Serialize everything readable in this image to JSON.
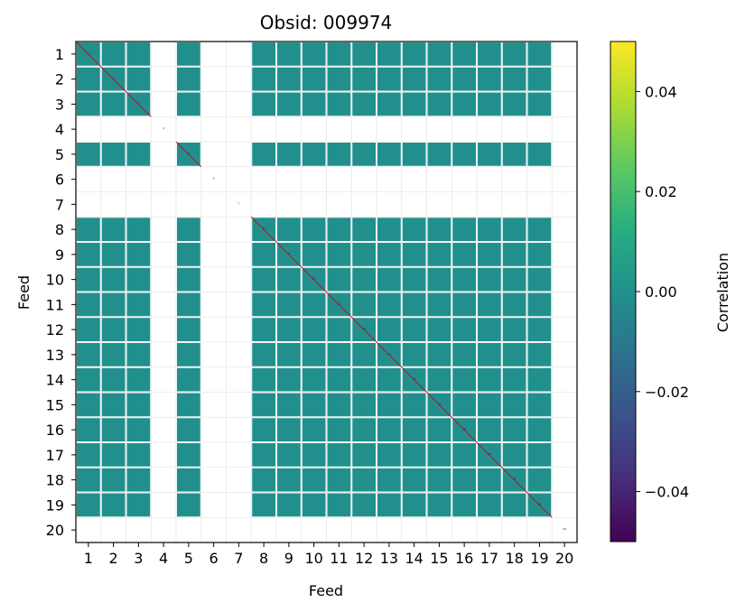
{
  "chart_data": {
    "type": "heatmap",
    "title": "Obsid: 009974",
    "xlabel": "Feed",
    "ylabel": "Feed",
    "feeds": [
      "1",
      "2",
      "3",
      "4",
      "5",
      "6",
      "7",
      "8",
      "9",
      "10",
      "11",
      "12",
      "13",
      "14",
      "15",
      "16",
      "17",
      "18",
      "19",
      "20"
    ],
    "active_feeds": [
      1,
      2,
      3,
      5,
      8,
      9,
      10,
      11,
      12,
      13,
      14,
      15,
      16,
      17,
      18,
      19
    ],
    "inactive_feeds": [
      4,
      6,
      7,
      20
    ],
    "colormap": "viridis",
    "dominant_value": 0.0,
    "colorbar": {
      "label": "Correlation",
      "vmin": -0.05,
      "vmax": 0.05,
      "ticks": [
        -0.04,
        -0.02,
        0.0,
        0.02,
        0.04
      ],
      "tick_labels": [
        "−0.04",
        "−0.02",
        "0.00",
        "0.02",
        "0.04"
      ]
    },
    "colors": {
      "cell": "#21908d",
      "grid": "#e6e6e6",
      "diagonal": "#b2182b",
      "background": "#ffffff"
    }
  }
}
